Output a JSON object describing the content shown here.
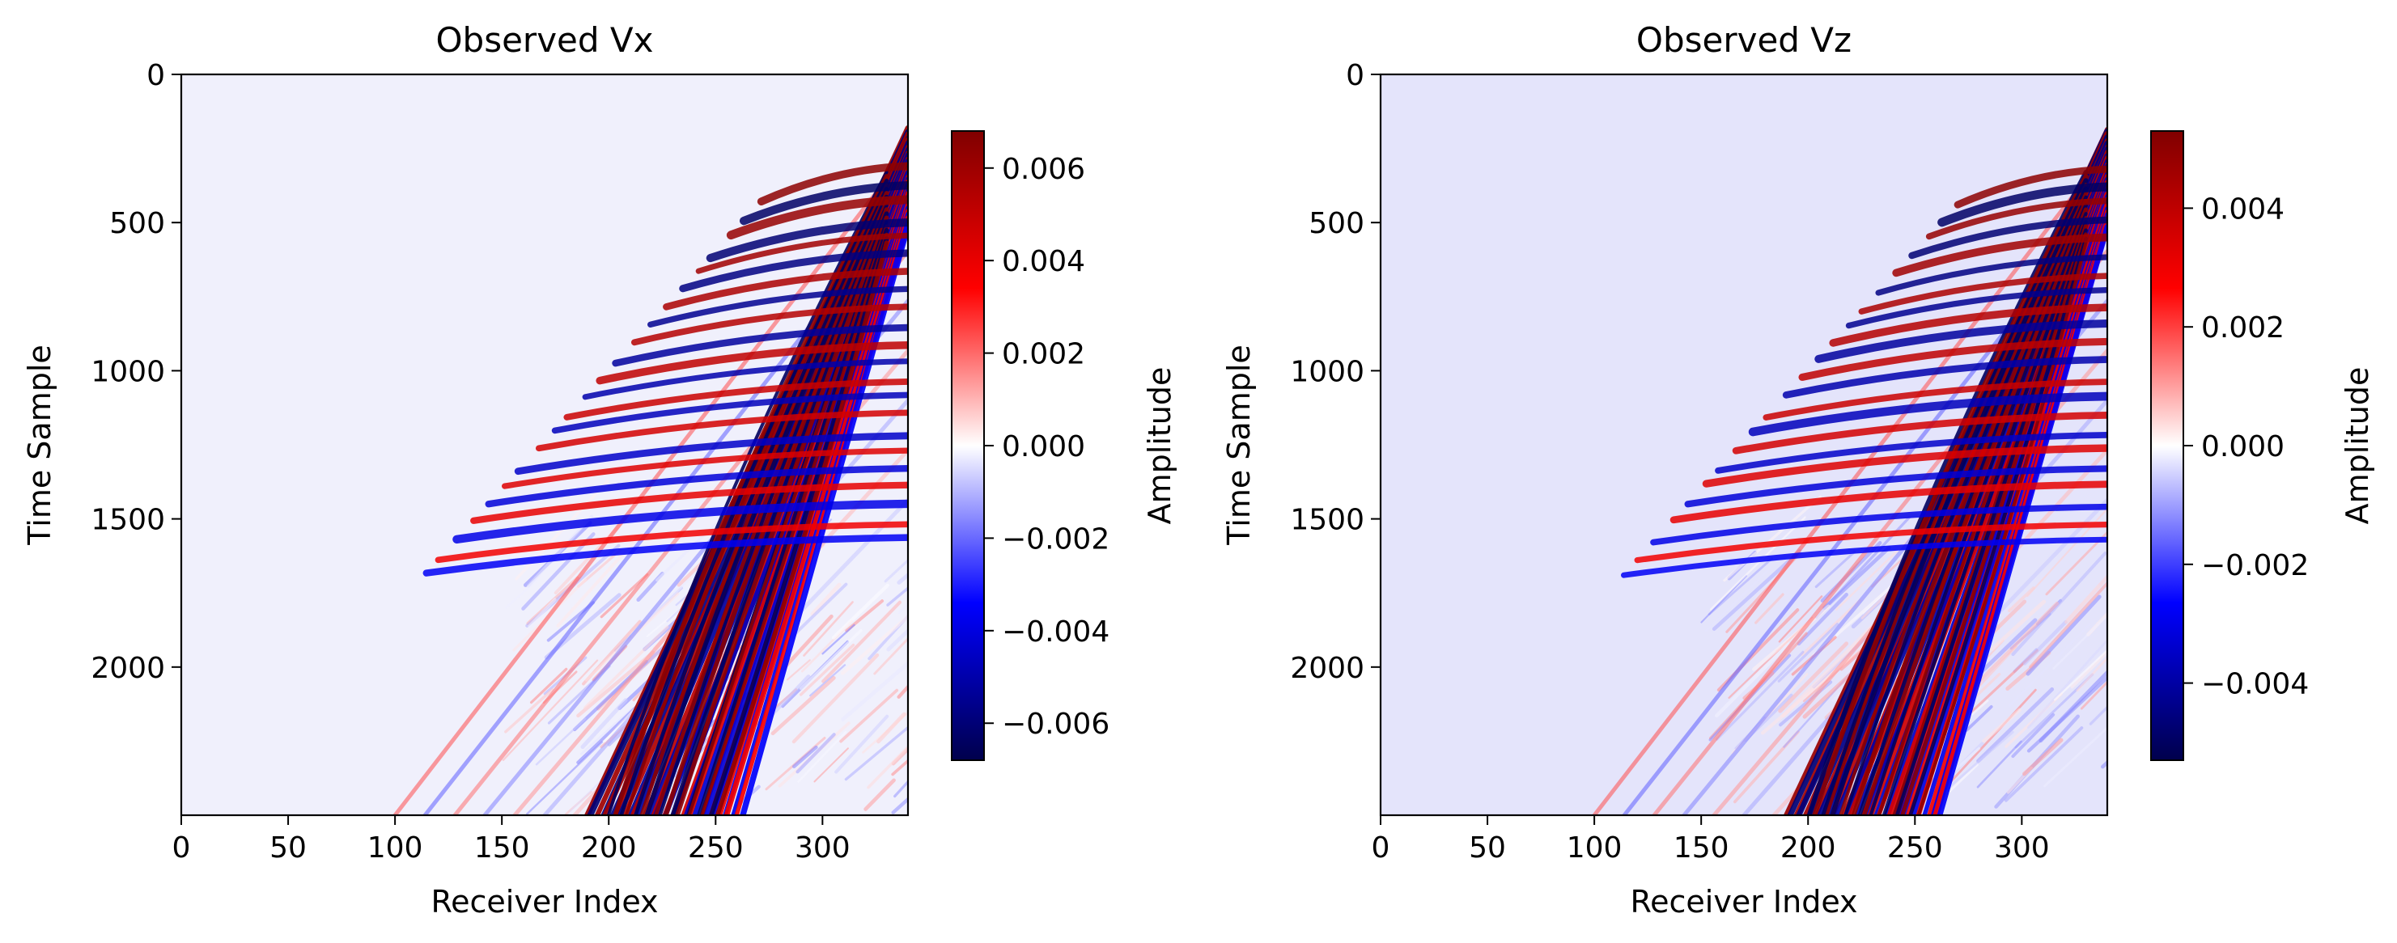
{
  "chart_data": [
    {
      "type": "heatmap",
      "title": "Observed Vx",
      "xlabel": "Receiver Index",
      "ylabel": "Time Sample",
      "xlim": [
        0,
        340
      ],
      "ylim": [
        2500,
        0
      ],
      "x_ticks": [
        0,
        50,
        100,
        150,
        200,
        250,
        300
      ],
      "y_ticks": [
        0,
        500,
        1000,
        1500,
        2000
      ],
      "x_tick_labels": [
        "0",
        "50",
        "100",
        "150",
        "200",
        "250",
        "300"
      ],
      "y_tick_labels": [
        "0",
        "500",
        "1000",
        "1500",
        "2000"
      ],
      "colormap": "seismic",
      "background_color": "#f0f0fc",
      "colorbar": {
        "label": "Amplitude",
        "range": [
          -0.0068,
          0.0068
        ],
        "ticks": [
          0.006,
          0.004,
          0.002,
          0.0,
          -0.002,
          -0.004,
          -0.006
        ],
        "tick_labels": [
          "0.006",
          "0.004",
          "0.002",
          "0.000",
          "−0.002",
          "−0.004",
          "−0.006"
        ]
      }
    },
    {
      "type": "heatmap",
      "title": "Observed Vz",
      "xlabel": "Receiver Index",
      "ylabel": "Time Sample",
      "xlim": [
        0,
        340
      ],
      "ylim": [
        2500,
        0
      ],
      "x_ticks": [
        0,
        50,
        100,
        150,
        200,
        250,
        300
      ],
      "y_ticks": [
        0,
        500,
        1000,
        1500,
        2000
      ],
      "x_tick_labels": [
        "0",
        "50",
        "100",
        "150",
        "200",
        "250",
        "300"
      ],
      "y_tick_labels": [
        "0",
        "500",
        "1000",
        "1500",
        "2000"
      ],
      "colormap": "seismic",
      "background_color": "#e4e4fb",
      "colorbar": {
        "label": "Amplitude",
        "range": [
          -0.0053,
          0.0053
        ],
        "ticks": [
          0.004,
          0.002,
          0.0,
          -0.002,
          -0.004
        ],
        "tick_labels": [
          "0.004",
          "0.002",
          "0.000",
          "−0.002",
          "−0.004"
        ]
      }
    }
  ]
}
